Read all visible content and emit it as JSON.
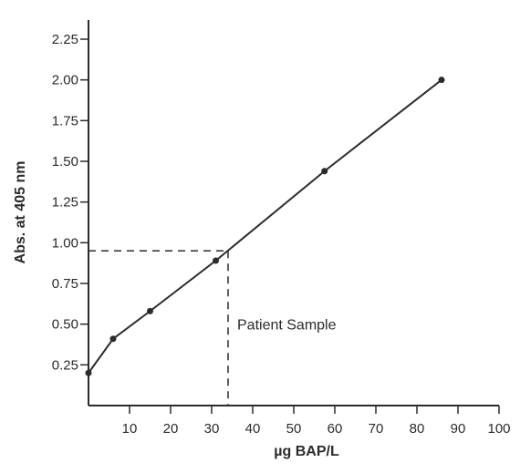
{
  "top_fragment": "",
  "chart_data": {
    "type": "line",
    "title": "",
    "xlabel": "µg BAP/L",
    "ylabel": "Abs. at 405 nm",
    "xlim": [
      0,
      100
    ],
    "ylim": [
      0,
      2.25
    ],
    "x_ticks": [
      "10",
      "20",
      "30",
      "40",
      "50",
      "60",
      "70",
      "80",
      "90",
      "100"
    ],
    "y_ticks": [
      "0.25",
      "0.50",
      "0.75",
      "1.00",
      "1.25",
      "1.50",
      "1.75",
      "2.00",
      "2.25"
    ],
    "grid": false,
    "series": [
      {
        "x": [
          0,
          6,
          15,
          31,
          57.5,
          86
        ],
        "y": [
          0.2,
          0.41,
          0.58,
          0.89,
          1.44,
          2.0
        ]
      }
    ],
    "annotations": [
      {
        "text": "Patient Sample",
        "x": 34,
        "y": 0.95
      }
    ]
  }
}
